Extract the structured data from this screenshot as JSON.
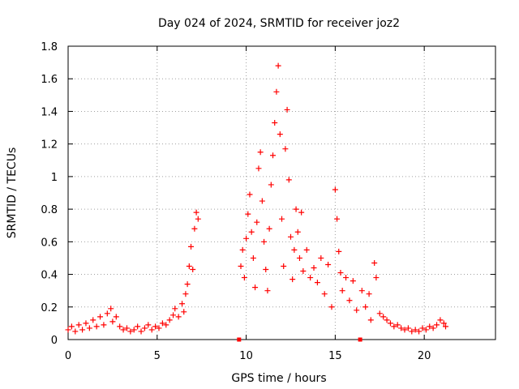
{
  "chart_data": {
    "type": "scatter",
    "title": "Day 024 of 2024, SRMTID for receiver joz2",
    "xlabel": "GPS time / hours",
    "ylabel": "SRMTID / TECUs",
    "xlim": [
      0,
      24
    ],
    "ylim": [
      0,
      1.8
    ],
    "xticks": [
      0,
      5,
      10,
      15,
      20
    ],
    "xtick_labels": [
      "0",
      "5",
      "10",
      "15",
      "20"
    ],
    "yticks": [
      0,
      0.2,
      0.4,
      0.6,
      0.8,
      1,
      1.2,
      1.4,
      1.6,
      1.8
    ],
    "ytick_labels": [
      "0",
      "0.2",
      "0.4",
      "0.6",
      "0.8",
      "1",
      "1.2",
      "1.4",
      "1.6",
      "1.8"
    ],
    "grid": true,
    "marker": "+",
    "color": "#ff0000",
    "series": [
      {
        "name": "SRMTID",
        "points": [
          [
            0.0,
            0.06
          ],
          [
            0.2,
            0.08
          ],
          [
            0.4,
            0.05
          ],
          [
            0.6,
            0.09
          ],
          [
            0.8,
            0.06
          ],
          [
            1.0,
            0.1
          ],
          [
            1.2,
            0.07
          ],
          [
            1.4,
            0.12
          ],
          [
            1.6,
            0.08
          ],
          [
            1.8,
            0.14
          ],
          [
            2.0,
            0.09
          ],
          [
            2.2,
            0.16
          ],
          [
            2.4,
            0.19
          ],
          [
            2.5,
            0.11
          ],
          [
            2.7,
            0.14
          ],
          [
            2.9,
            0.08
          ],
          [
            3.1,
            0.06
          ],
          [
            3.3,
            0.07
          ],
          [
            3.5,
            0.05
          ],
          [
            3.7,
            0.06
          ],
          [
            3.9,
            0.08
          ],
          [
            4.1,
            0.05
          ],
          [
            4.3,
            0.07
          ],
          [
            4.5,
            0.09
          ],
          [
            4.7,
            0.06
          ],
          [
            4.9,
            0.08
          ],
          [
            5.1,
            0.07
          ],
          [
            5.3,
            0.1
          ],
          [
            5.5,
            0.09
          ],
          [
            5.7,
            0.12
          ],
          [
            5.9,
            0.15
          ],
          [
            6.0,
            0.19
          ],
          [
            6.2,
            0.14
          ],
          [
            6.4,
            0.22
          ],
          [
            6.5,
            0.17
          ],
          [
            6.6,
            0.28
          ],
          [
            6.7,
            0.34
          ],
          [
            6.8,
            0.45
          ],
          [
            6.9,
            0.57
          ],
          [
            7.0,
            0.43
          ],
          [
            7.1,
            0.68
          ],
          [
            7.2,
            0.78
          ],
          [
            7.3,
            0.74
          ],
          [
            9.6,
            0.0
          ],
          [
            9.7,
            0.45
          ],
          [
            9.8,
            0.55
          ],
          [
            9.9,
            0.38
          ],
          [
            10.0,
            0.62
          ],
          [
            10.1,
            0.77
          ],
          [
            10.2,
            0.89
          ],
          [
            10.3,
            0.66
          ],
          [
            10.4,
            0.5
          ],
          [
            10.5,
            0.32
          ],
          [
            10.6,
            0.72
          ],
          [
            10.7,
            1.05
          ],
          [
            10.8,
            1.15
          ],
          [
            10.9,
            0.85
          ],
          [
            11.0,
            0.6
          ],
          [
            11.1,
            0.43
          ],
          [
            11.2,
            0.3
          ],
          [
            11.3,
            0.68
          ],
          [
            11.4,
            0.95
          ],
          [
            11.5,
            1.13
          ],
          [
            11.6,
            1.33
          ],
          [
            11.7,
            1.52
          ],
          [
            11.8,
            1.68
          ],
          [
            11.9,
            1.26
          ],
          [
            12.0,
            0.74
          ],
          [
            12.1,
            0.45
          ],
          [
            12.2,
            1.17
          ],
          [
            12.3,
            1.41
          ],
          [
            12.4,
            0.98
          ],
          [
            12.5,
            0.63
          ],
          [
            12.6,
            0.37
          ],
          [
            12.7,
            0.55
          ],
          [
            12.8,
            0.8
          ],
          [
            12.9,
            0.66
          ],
          [
            13.0,
            0.5
          ],
          [
            13.1,
            0.78
          ],
          [
            13.2,
            0.42
          ],
          [
            13.4,
            0.55
          ],
          [
            13.6,
            0.38
          ],
          [
            13.8,
            0.44
          ],
          [
            14.0,
            0.35
          ],
          [
            14.2,
            0.5
          ],
          [
            14.4,
            0.28
          ],
          [
            14.6,
            0.46
          ],
          [
            14.8,
            0.2
          ],
          [
            15.0,
            0.92
          ],
          [
            15.1,
            0.74
          ],
          [
            15.2,
            0.54
          ],
          [
            15.3,
            0.41
          ],
          [
            15.4,
            0.3
          ],
          [
            15.6,
            0.38
          ],
          [
            15.8,
            0.24
          ],
          [
            16.0,
            0.36
          ],
          [
            16.2,
            0.18
          ],
          [
            16.4,
            0.0
          ],
          [
            16.5,
            0.3
          ],
          [
            16.7,
            0.2
          ],
          [
            16.9,
            0.28
          ],
          [
            17.0,
            0.12
          ],
          [
            17.2,
            0.47
          ],
          [
            17.3,
            0.38
          ],
          [
            17.5,
            0.16
          ],
          [
            17.7,
            0.14
          ],
          [
            17.9,
            0.12
          ],
          [
            18.1,
            0.1
          ],
          [
            18.3,
            0.08
          ],
          [
            18.5,
            0.09
          ],
          [
            18.7,
            0.07
          ],
          [
            18.9,
            0.06
          ],
          [
            19.1,
            0.07
          ],
          [
            19.3,
            0.05
          ],
          [
            19.5,
            0.06
          ],
          [
            19.7,
            0.05
          ],
          [
            19.9,
            0.07
          ],
          [
            20.1,
            0.06
          ],
          [
            20.3,
            0.08
          ],
          [
            20.5,
            0.07
          ],
          [
            20.7,
            0.09
          ],
          [
            20.9,
            0.12
          ],
          [
            21.1,
            0.1
          ],
          [
            21.2,
            0.08
          ]
        ]
      }
    ]
  }
}
